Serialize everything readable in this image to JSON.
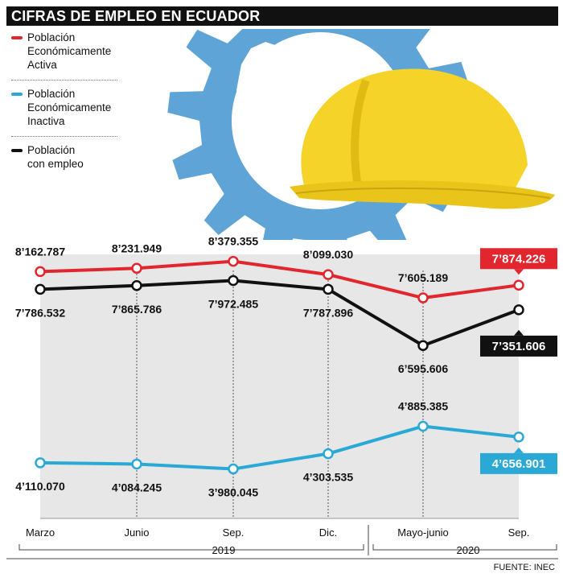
{
  "title": "CIFRAS DE EMPLEO EN ECUADOR",
  "source": "FUENTE: INEC",
  "colors": {
    "active": "#e2262e",
    "inactive": "#2aa9d6",
    "employed": "#111111",
    "gear": "#5fa4d6",
    "helmet": "#f5d328"
  },
  "chart_data": {
    "type": "line",
    "x": [
      "Marzo",
      "Junio",
      "Sep.",
      "Dic.",
      "Mayo-junio",
      "Sep."
    ],
    "year_labels": [
      "2019",
      "2020"
    ],
    "legend_placement": "top-left",
    "grid": false,
    "ylim": [
      3000000,
      8800000
    ],
    "series": [
      {
        "key": "active",
        "name": "Población Económicamente Activa",
        "name_lines": [
          "Población",
          "Económicamente",
          "Activa"
        ],
        "values": [
          8162787,
          8231949,
          8379355,
          8099030,
          7605189,
          7874226
        ],
        "labels": [
          "8’162.787",
          "8’231.949",
          "8’379.355",
          "8’099.030",
          "7’605.189",
          "7’874.226"
        ]
      },
      {
        "key": "inactive",
        "name": "Población Económicamente Inactiva",
        "name_lines": [
          "Población",
          "Económicamente",
          "Inactiva"
        ],
        "values": [
          4110070,
          4084245,
          3980045,
          4303535,
          4885385,
          4656901
        ],
        "labels": [
          "4’110.070",
          "4’084.245",
          "3’980.045",
          "4’303.535",
          "4’885.385",
          "4’656.901"
        ]
      },
      {
        "key": "employed",
        "name": "Población con empleo",
        "name_lines": [
          "Población",
          "con empleo"
        ],
        "values": [
          7786532,
          7865786,
          7972485,
          7787896,
          6595606,
          7351606
        ],
        "labels": [
          "7’786.532",
          "7’865.786",
          "7’972.485",
          "7’787.896",
          "6’595.606",
          "7’351.606"
        ]
      }
    ]
  }
}
